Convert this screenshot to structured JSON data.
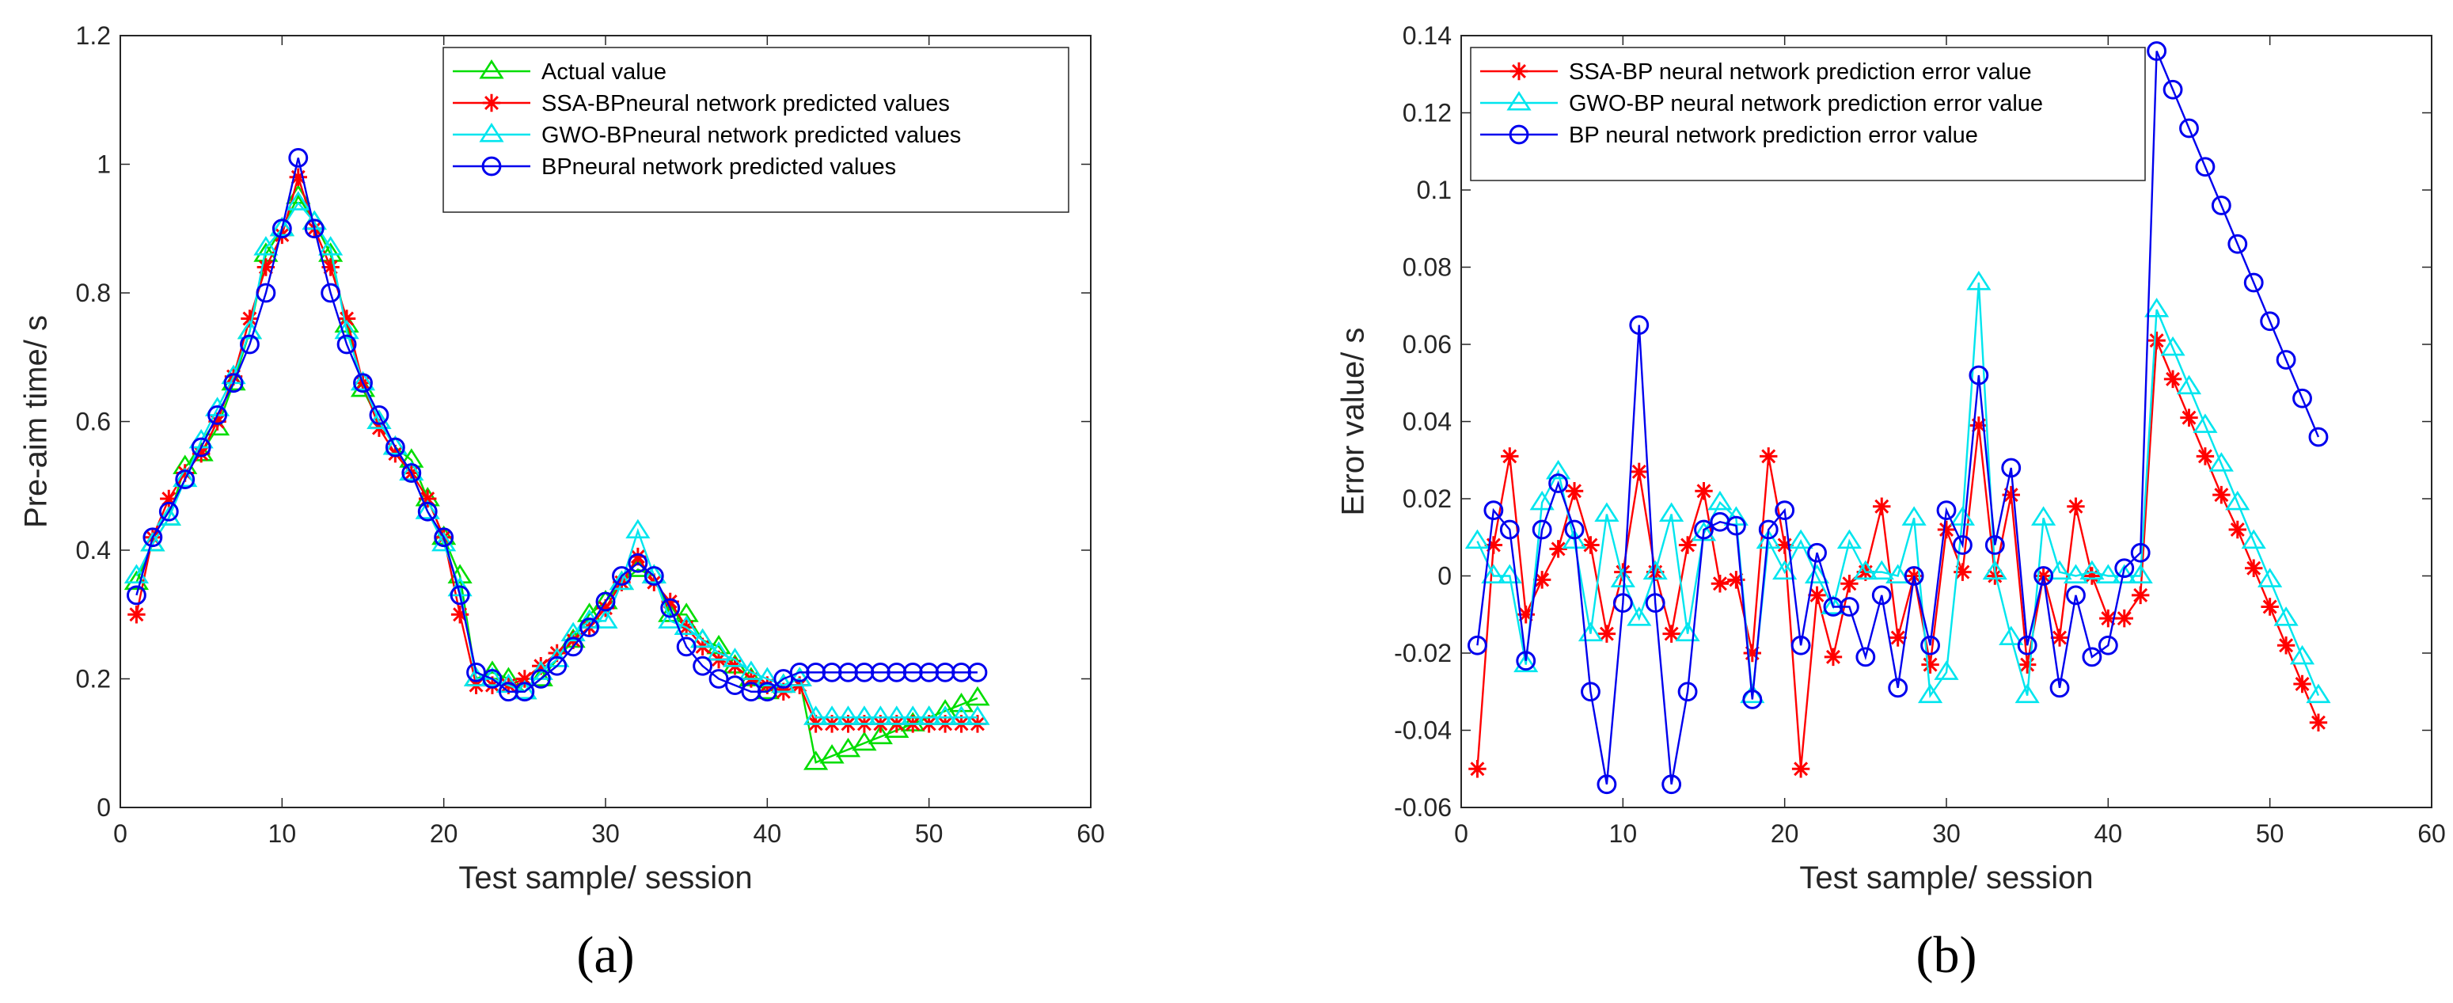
{
  "chart_data": [
    {
      "type": "line",
      "panel_label": "(a)",
      "title": "",
      "xlabel": "Test sample/ session",
      "ylabel": "Pre-aim time/ s",
      "xlim": [
        0,
        60
      ],
      "ylim": [
        0,
        1.2
      ],
      "xticks": [
        0,
        10,
        20,
        30,
        40,
        50,
        60
      ],
      "yticks": [
        0,
        0.2,
        0.4,
        0.6,
        0.8,
        1,
        1.2
      ],
      "xtick_labels": [
        "0",
        "10",
        "20",
        "30",
        "40",
        "50",
        "60"
      ],
      "ytick_labels": [
        "0",
        "0.2",
        "0.4",
        "0.6",
        "0.8",
        "1",
        "1.2"
      ],
      "legend_position": "top-right",
      "x": [
        1,
        2,
        3,
        4,
        5,
        6,
        7,
        8,
        9,
        10,
        11,
        12,
        13,
        14,
        15,
        16,
        17,
        18,
        19,
        20,
        21,
        22,
        23,
        24,
        25,
        26,
        27,
        28,
        29,
        30,
        31,
        32,
        33,
        34,
        35,
        36,
        37,
        38,
        39,
        40,
        41,
        42,
        43,
        44,
        45,
        46,
        47,
        48,
        49,
        50,
        51,
        52,
        53
      ],
      "series": [
        {
          "name": "Actual value",
          "color": "#00dd00",
          "marker": "triangle",
          "values": [
            0.35,
            0.41,
            0.45,
            0.53,
            0.55,
            0.59,
            0.66,
            0.74,
            0.86,
            0.9,
            0.95,
            0.91,
            0.86,
            0.75,
            0.65,
            0.6,
            0.56,
            0.54,
            0.48,
            0.42,
            0.36,
            0.2,
            0.21,
            0.2,
            0.18,
            0.2,
            0.23,
            0.26,
            0.3,
            0.32,
            0.35,
            0.37,
            0.36,
            0.3,
            0.3,
            0.26,
            0.25,
            0.22,
            0.2,
            0.18,
            0.19,
            0.2,
            0.07,
            0.08,
            0.09,
            0.1,
            0.11,
            0.12,
            0.13,
            0.14,
            0.15,
            0.16,
            0.17
          ]
        },
        {
          "name": "SSA-BPneural network predicted values",
          "color": "#ff0000",
          "marker": "asterisk",
          "values": [
            0.3,
            0.42,
            0.48,
            0.52,
            0.55,
            0.6,
            0.67,
            0.76,
            0.84,
            0.89,
            0.98,
            0.9,
            0.84,
            0.76,
            0.66,
            0.59,
            0.55,
            0.52,
            0.48,
            0.42,
            0.3,
            0.19,
            0.19,
            0.19,
            0.2,
            0.22,
            0.24,
            0.26,
            0.28,
            0.31,
            0.35,
            0.39,
            0.35,
            0.32,
            0.28,
            0.25,
            0.23,
            0.22,
            0.2,
            0.19,
            0.18,
            0.19,
            0.13,
            0.13,
            0.13,
            0.13,
            0.13,
            0.13,
            0.13,
            0.13,
            0.13,
            0.13,
            0.13
          ]
        },
        {
          "name": "GWO-BPneural network predicted values",
          "color": "#00e5ee",
          "marker": "triangle",
          "values": [
            0.36,
            0.41,
            0.45,
            0.51,
            0.57,
            0.62,
            0.67,
            0.74,
            0.87,
            0.9,
            0.94,
            0.91,
            0.87,
            0.74,
            0.66,
            0.6,
            0.56,
            0.52,
            0.46,
            0.41,
            0.34,
            0.2,
            0.2,
            0.19,
            0.18,
            0.21,
            0.23,
            0.27,
            0.29,
            0.29,
            0.35,
            0.43,
            0.36,
            0.29,
            0.28,
            0.26,
            0.24,
            0.23,
            0.21,
            0.2,
            0.19,
            0.2,
            0.14,
            0.14,
            0.14,
            0.14,
            0.14,
            0.14,
            0.14,
            0.14,
            0.14,
            0.14,
            0.14
          ]
        },
        {
          "name": "BPneural network predicted values",
          "color": "#0000ee",
          "marker": "circle",
          "values": [
            0.33,
            0.42,
            0.46,
            0.51,
            0.56,
            0.61,
            0.66,
            0.72,
            0.8,
            0.9,
            1.01,
            0.9,
            0.8,
            0.72,
            0.66,
            0.61,
            0.56,
            0.52,
            0.46,
            0.42,
            0.33,
            0.21,
            0.2,
            0.18,
            0.18,
            0.2,
            0.22,
            0.25,
            0.28,
            0.32,
            0.36,
            0.38,
            0.36,
            0.31,
            0.25,
            0.22,
            0.2,
            0.19,
            0.18,
            0.18,
            0.2,
            0.21,
            0.21,
            0.21,
            0.21,
            0.21,
            0.21,
            0.21,
            0.21,
            0.21,
            0.21,
            0.21,
            0.21
          ]
        }
      ]
    },
    {
      "type": "line",
      "panel_label": "(b)",
      "title": "",
      "xlabel": "Test sample/ session",
      "ylabel": "Error value/ s",
      "xlim": [
        0,
        60
      ],
      "ylim": [
        -0.06,
        0.14
      ],
      "xticks": [
        0,
        10,
        20,
        30,
        40,
        50,
        60
      ],
      "yticks": [
        -0.06,
        -0.04,
        -0.02,
        0,
        0.02,
        0.04,
        0.06,
        0.08,
        0.1,
        0.12,
        0.14
      ],
      "xtick_labels": [
        "0",
        "10",
        "20",
        "30",
        "40",
        "50",
        "60"
      ],
      "ytick_labels": [
        "-0.06",
        "-0.04",
        "-0.02",
        "0",
        "0.02",
        "0.04",
        "0.06",
        "0.08",
        "0.1",
        "0.12",
        "0.14"
      ],
      "legend_position": "top-left",
      "x": [
        1,
        2,
        3,
        4,
        5,
        6,
        7,
        8,
        9,
        10,
        11,
        12,
        13,
        14,
        15,
        16,
        17,
        18,
        19,
        20,
        21,
        22,
        23,
        24,
        25,
        26,
        27,
        28,
        29,
        30,
        31,
        32,
        33,
        34,
        35,
        36,
        37,
        38,
        39,
        40,
        41,
        42,
        43,
        44,
        45,
        46,
        47,
        48,
        49,
        50,
        51,
        52,
        53
      ],
      "series": [
        {
          "name": "SSA-BP neural network prediction error value",
          "color": "#ff0000",
          "marker": "asterisk",
          "values": [
            -0.05,
            0.008,
            0.031,
            -0.01,
            -0.001,
            0.007,
            0.022,
            0.008,
            -0.015,
            0.001,
            0.027,
            0.001,
            -0.015,
            0.008,
            0.022,
            -0.002,
            -0.001,
            -0.02,
            0.031,
            0.008,
            -0.05,
            -0.005,
            -0.021,
            -0.002,
            0.001,
            0.018,
            -0.016,
            0.0,
            -0.023,
            0.012,
            0.001,
            0.039,
            0.0,
            0.021,
            -0.023,
            0.0,
            -0.016,
            0.018,
            0.0,
            -0.011,
            -0.011,
            -0.005,
            0.061,
            0.051,
            0.041,
            0.031,
            0.021,
            0.012,
            0.002,
            -0.008,
            -0.018,
            -0.028,
            -0.038
          ]
        },
        {
          "name": "GWO-BP neural network prediction error value",
          "color": "#00e5ee",
          "marker": "triangle",
          "values": [
            0.009,
            0.0,
            0.0,
            -0.023,
            0.019,
            0.027,
            0.009,
            -0.015,
            0.016,
            -0.001,
            -0.011,
            0.001,
            0.016,
            -0.015,
            0.011,
            0.019,
            0.015,
            -0.031,
            0.009,
            0.001,
            0.009,
            0.0,
            -0.008,
            0.009,
            0.001,
            0.001,
            0.0,
            0.015,
            -0.031,
            -0.025,
            0.015,
            0.076,
            0.001,
            -0.016,
            -0.031,
            0.015,
            0.001,
            0.0,
            0.001,
            0.0,
            0.0,
            0.0,
            0.069,
            0.059,
            0.049,
            0.039,
            0.029,
            0.019,
            0.009,
            -0.001,
            -0.011,
            -0.021,
            -0.031
          ]
        },
        {
          "name": "BP neural network prediction error value",
          "color": "#0000ee",
          "marker": "circle",
          "values": [
            -0.018,
            0.017,
            0.012,
            -0.022,
            0.012,
            0.024,
            0.012,
            -0.03,
            -0.054,
            -0.007,
            0.065,
            -0.007,
            -0.054,
            -0.03,
            0.012,
            0.014,
            0.013,
            -0.032,
            0.012,
            0.017,
            -0.018,
            0.006,
            -0.008,
            -0.008,
            -0.021,
            -0.005,
            -0.029,
            0.0,
            -0.018,
            0.017,
            0.008,
            0.052,
            0.008,
            0.028,
            -0.018,
            0.0,
            -0.029,
            -0.005,
            -0.021,
            -0.018,
            0.002,
            0.006,
            0.136,
            0.126,
            0.116,
            0.106,
            0.096,
            0.086,
            0.076,
            0.066,
            0.056,
            0.046,
            0.036
          ]
        }
      ]
    }
  ]
}
